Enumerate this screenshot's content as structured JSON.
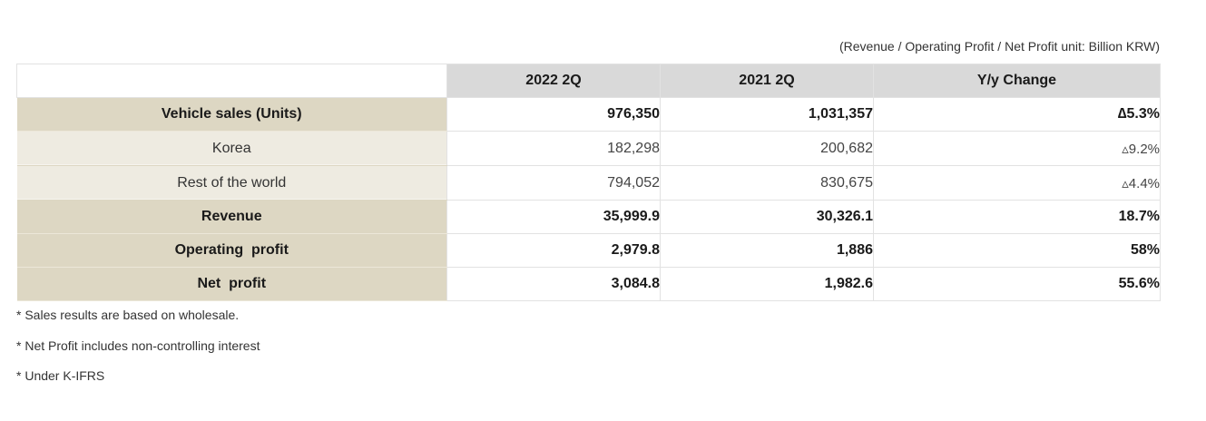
{
  "unit_note": "(Revenue / Operating Profit / Net Profit unit: Billion KRW)",
  "table": {
    "headers": [
      "",
      "2022 2Q",
      "2021 2Q",
      "Y/y  Change"
    ],
    "rows": [
      {
        "label": "Vehicle sales (Units)",
        "values": [
          "976,350",
          "1,031,357",
          "∆5.3%"
        ]
      },
      {
        "label": "Korea",
        "values": [
          "182,298",
          "200,682",
          "▵9.2%"
        ]
      },
      {
        "label": "Rest of the world",
        "values": [
          "794,052",
          "830,675",
          "▵4.4%"
        ]
      },
      {
        "label": "Revenue",
        "values": [
          "35,999.9",
          "30,326.1",
          "18.7%"
        ]
      },
      {
        "label": "Operating  profit",
        "values": [
          "2,979.8",
          "1,886",
          "58%"
        ]
      },
      {
        "label": "Net  profit",
        "values": [
          "3,084.8",
          "1,982.6",
          "55.6%"
        ]
      }
    ]
  },
  "footnotes": [
    "* Sales results are based on wholesale.",
    "* Net Profit includes non-controlling interest",
    "* Under K-IFRS"
  ]
}
